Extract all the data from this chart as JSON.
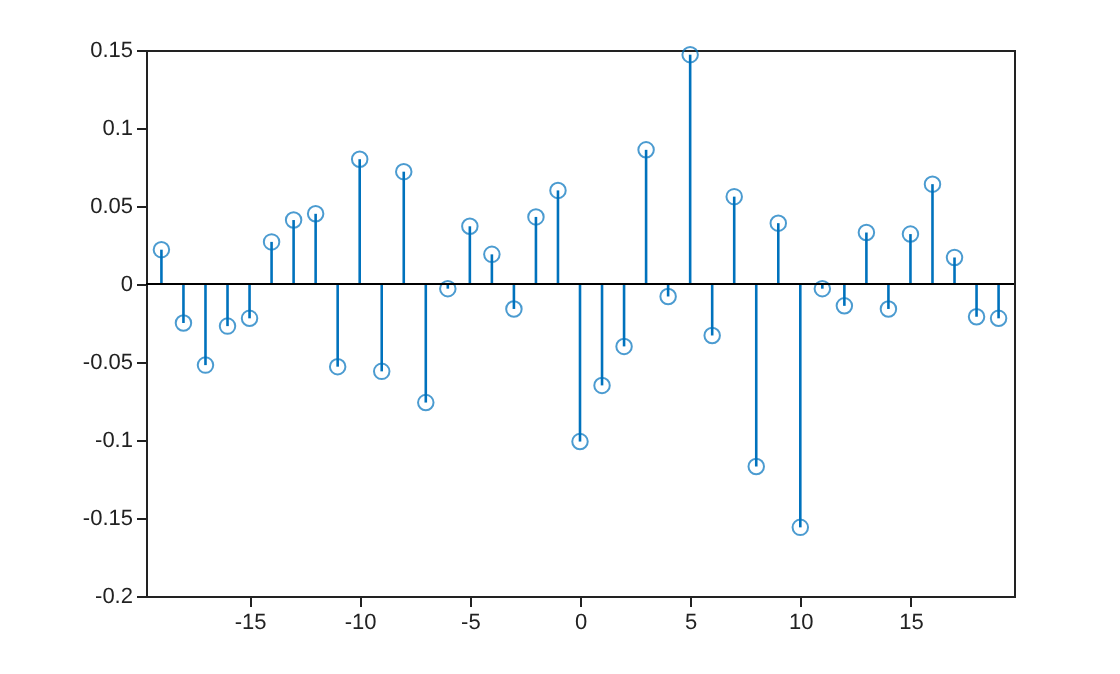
{
  "chart_data": {
    "type": "lollipop",
    "x": [
      -19,
      -18,
      -17,
      -16,
      -15,
      -14,
      -13,
      -12,
      -11,
      -10,
      -9,
      -8,
      -7,
      -6,
      -5,
      -4,
      -3,
      -2,
      -1,
      0,
      1,
      2,
      3,
      4,
      5,
      6,
      7,
      8,
      9,
      10,
      11,
      12,
      13,
      14,
      15,
      16,
      17,
      18,
      19
    ],
    "series": [
      {
        "color": "#0072bd",
        "values": [
          0.022,
          -0.025,
          -0.052,
          -0.027,
          -0.022,
          0.027,
          0.041,
          0.045,
          -0.053,
          0.08,
          -0.056,
          0.072,
          -0.076,
          -0.003,
          0.037,
          0.019,
          -0.016,
          0.043,
          0.06,
          -0.101,
          -0.065,
          -0.04,
          0.086,
          -0.008,
          0.147,
          -0.033,
          0.056,
          -0.117,
          0.039,
          -0.156,
          -0.003,
          -0.014,
          0.033,
          -0.016,
          0.032,
          0.064,
          0.017,
          -0.021,
          -0.022
        ]
      }
    ],
    "xlim": [
      -19.7,
      19.7
    ],
    "xticks": [
      -15,
      -10,
      -5,
      0,
      5,
      10,
      15
    ],
    "ylim": [
      -0.2,
      0.15
    ],
    "yticks": [
      -0.2,
      -0.15,
      -0.1,
      -0.05,
      0,
      0.05,
      0.1,
      0.15
    ],
    "ref_lines": [
      {
        "axis": "y",
        "value": 0,
        "color": "#000000"
      }
    ],
    "marker": "circle",
    "grid": false
  }
}
